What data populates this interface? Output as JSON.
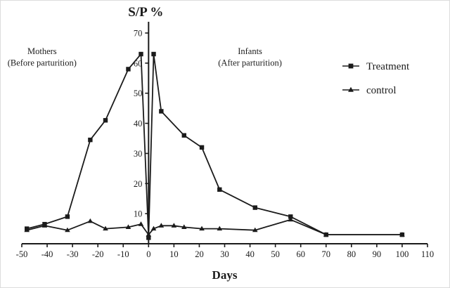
{
  "chart_data": {
    "type": "line",
    "title": "S/P %",
    "xlabel": "Days",
    "ylabel": "S/P %",
    "xlim": [
      -50,
      110
    ],
    "ylim": [
      0,
      70
    ],
    "x_ticks": [
      -50,
      -40,
      -30,
      -20,
      -10,
      0,
      10,
      20,
      30,
      40,
      50,
      60,
      70,
      80,
      90,
      100,
      110
    ],
    "y_ticks": [
      10,
      20,
      30,
      40,
      50,
      60,
      70
    ],
    "grid": false,
    "legend_position": "right",
    "line_color": "#1b1b1b",
    "annotations": [
      {
        "lines": [
          "Mothers",
          "(Before parturition)"
        ],
        "x": -42,
        "y": 63
      },
      {
        "lines": [
          "Infants",
          "(After parturition)"
        ],
        "x": 40,
        "y": 63
      }
    ],
    "series": [
      {
        "name": "Treatment",
        "marker": "square",
        "points": [
          [
            -48,
            5
          ],
          [
            -41,
            6.5
          ],
          [
            -32,
            9
          ],
          [
            -23,
            34.5
          ],
          [
            -17,
            41
          ],
          [
            -8,
            58
          ],
          [
            -3,
            63
          ],
          [
            0,
            2
          ],
          [
            2,
            63
          ],
          [
            5,
            44
          ],
          [
            14,
            36
          ],
          [
            21,
            32
          ],
          [
            28,
            18
          ],
          [
            42,
            12
          ],
          [
            56,
            9
          ],
          [
            70,
            3
          ],
          [
            100,
            3
          ]
        ]
      },
      {
        "name": "control",
        "marker": "triangle",
        "points": [
          [
            -48,
            4.5
          ],
          [
            -41,
            6
          ],
          [
            -32,
            4.5
          ],
          [
            -23,
            7.5
          ],
          [
            -17,
            5
          ],
          [
            -8,
            5.5
          ],
          [
            -3,
            6.5
          ],
          [
            0,
            3
          ],
          [
            2,
            5
          ],
          [
            5,
            6
          ],
          [
            10,
            6
          ],
          [
            14,
            5.5
          ],
          [
            21,
            5
          ],
          [
            28,
            5
          ],
          [
            42,
            4.5
          ],
          [
            56,
            8
          ],
          [
            70,
            3
          ],
          [
            100,
            3
          ]
        ]
      }
    ]
  }
}
